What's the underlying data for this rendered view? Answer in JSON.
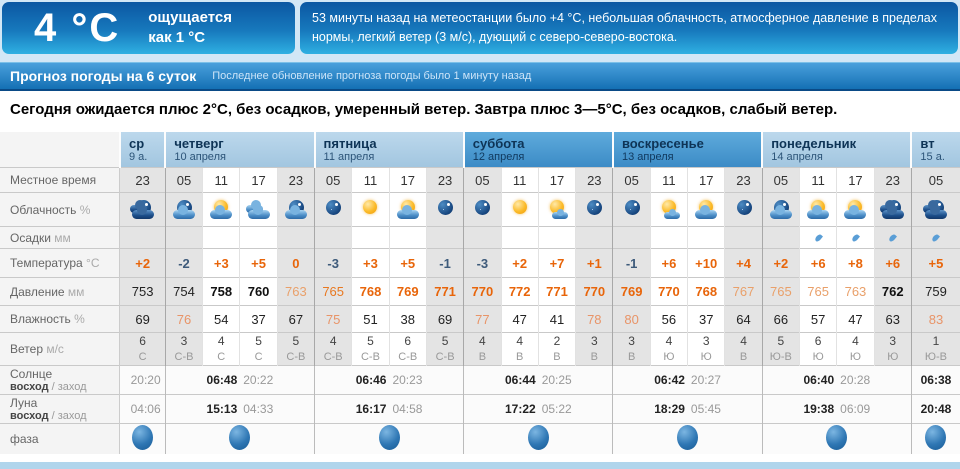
{
  "current": {
    "temp_big": "4 °C",
    "feels_line1": "ощущается",
    "feels_line2": "как 1 °С",
    "summary": "53 минуты назад на метеостанции было +4 °С, небольшая облачность, атмосферное давление в пределах нормы, легкий ветер (3 м/с), дующий с северо-северо-востока."
  },
  "forecast": {
    "title": "Прогноз погоды на 6 суток",
    "updated": "Последнее обновление прогноза погоды было 1 минуту назад"
  },
  "message": {
    "text": "Сегодня ожидается плюс 2°С, без осадков, умеренный ветер. Завтра плюс 3—5°С, без осадков, слабый ветер."
  },
  "colors": {
    "accent_blue": "#1470b4",
    "positive_temp": "#e8650a",
    "negative_temp": "#3d5a7a",
    "high_humidity": "#e89468",
    "weekend_header": "#4a9fd6"
  },
  "table": {
    "row_labels": {
      "time": {
        "label": "Местное время",
        "unit": ""
      },
      "cloud": {
        "label": "Облачность",
        "unit": "%"
      },
      "precip": {
        "label": "Осадки",
        "unit": "мм"
      },
      "temp": {
        "label": "Температура",
        "unit": "°С"
      },
      "pressure": {
        "label": "Давление",
        "unit": "мм"
      },
      "humidity": {
        "label": "Влажность",
        "unit": "%"
      },
      "wind": {
        "label": "Ветер",
        "unit": "м/с"
      },
      "sun": {
        "label": "Солнце",
        "sub_rise": "восход",
        "sub_set": "заход"
      },
      "moon": {
        "label": "Луна",
        "sub_rise": "восход",
        "sub_set": "заход"
      },
      "phase": {
        "label": "фаза"
      }
    },
    "days": [
      {
        "name": "ср",
        "date": "9 а.",
        "span": 1,
        "weekend": false,
        "sun_rise": "",
        "sun_set": "20:20",
        "moon_rise": "",
        "moon_set": "04:06"
      },
      {
        "name": "четверг",
        "date": "10 апреля",
        "span": 4,
        "weekend": false,
        "sun_rise": "06:48",
        "sun_set": "20:22",
        "moon_rise": "15:13",
        "moon_set": "04:33"
      },
      {
        "name": "пятница",
        "date": "11 апреля",
        "span": 4,
        "weekend": false,
        "sun_rise": "06:46",
        "sun_set": "20:23",
        "moon_rise": "16:17",
        "moon_set": "04:58"
      },
      {
        "name": "суббота",
        "date": "12 апреля",
        "span": 4,
        "weekend": true,
        "sun_rise": "06:44",
        "sun_set": "20:25",
        "moon_rise": "17:22",
        "moon_set": "05:22"
      },
      {
        "name": "воскресенье",
        "date": "13 апреля",
        "span": 4,
        "weekend": true,
        "sun_rise": "06:42",
        "sun_set": "20:27",
        "moon_rise": "18:29",
        "moon_set": "05:45"
      },
      {
        "name": "понедельник",
        "date": "14 апреля",
        "span": 4,
        "weekend": false,
        "sun_rise": "06:40",
        "sun_set": "20:28",
        "moon_rise": "19:38",
        "moon_set": "06:09"
      },
      {
        "name": "вт",
        "date": "15 а.",
        "span": 1,
        "weekend": false,
        "sun_rise": "06:38",
        "sun_set": "",
        "moon_rise": "20:48",
        "moon_set": ""
      }
    ],
    "columns": [
      {
        "t": "23",
        "night": true,
        "icon": "night-clouds",
        "drop": false,
        "temp": "+2",
        "tc": "pos",
        "pres": "753",
        "pc": "k",
        "hum": "69",
        "hc": "n",
        "ws": "6",
        "wd": "С"
      },
      {
        "t": "05",
        "night": true,
        "icon": "moon-cloud",
        "drop": false,
        "temp": "-2",
        "tc": "neg",
        "pres": "754",
        "pc": "k",
        "hum": "76",
        "hc": "o",
        "ws": "3",
        "wd": "С-В"
      },
      {
        "t": "11",
        "night": false,
        "icon": "sun-cloud",
        "drop": false,
        "temp": "+3",
        "tc": "pos",
        "pres": "758",
        "pc": "kb",
        "hum": "54",
        "hc": "n",
        "ws": "4",
        "wd": "С"
      },
      {
        "t": "17",
        "night": false,
        "icon": "clouds",
        "drop": false,
        "temp": "+5",
        "tc": "pos",
        "pres": "760",
        "pc": "kb",
        "hum": "37",
        "hc": "n",
        "ws": "5",
        "wd": "С"
      },
      {
        "t": "23",
        "night": true,
        "icon": "moon-cloud",
        "drop": false,
        "temp": "0",
        "tc": "pos",
        "pres": "763",
        "pc": "ol",
        "hum": "67",
        "hc": "n",
        "ws": "5",
        "wd": "С-В"
      },
      {
        "t": "05",
        "night": true,
        "icon": "moon",
        "drop": false,
        "temp": "-3",
        "tc": "neg",
        "pres": "765",
        "pc": "on",
        "hum": "75",
        "hc": "o",
        "ws": "4",
        "wd": "С-В"
      },
      {
        "t": "11",
        "night": false,
        "icon": "sun",
        "drop": false,
        "temp": "+3",
        "tc": "pos",
        "pres": "768",
        "pc": "o",
        "hum": "51",
        "hc": "n",
        "ws": "5",
        "wd": "С-В"
      },
      {
        "t": "17",
        "night": false,
        "icon": "sun-cloud",
        "drop": false,
        "temp": "+5",
        "tc": "pos",
        "pres": "769",
        "pc": "o",
        "hum": "38",
        "hc": "n",
        "ws": "6",
        "wd": "С-В"
      },
      {
        "t": "23",
        "night": true,
        "icon": "moon",
        "drop": false,
        "temp": "-1",
        "tc": "neg",
        "pres": "771",
        "pc": "o",
        "hum": "69",
        "hc": "n",
        "ws": "5",
        "wd": "С-В"
      },
      {
        "t": "05",
        "night": true,
        "icon": "moon",
        "drop": false,
        "temp": "-3",
        "tc": "neg",
        "pres": "770",
        "pc": "o",
        "hum": "77",
        "hc": "o",
        "ws": "4",
        "wd": "В"
      },
      {
        "t": "11",
        "night": false,
        "icon": "sun",
        "drop": false,
        "temp": "+2",
        "tc": "pos",
        "pres": "772",
        "pc": "o",
        "hum": "47",
        "hc": "n",
        "ws": "4",
        "wd": "В"
      },
      {
        "t": "17",
        "night": false,
        "icon": "sun-small-cloud",
        "drop": false,
        "temp": "+7",
        "tc": "pos",
        "pres": "771",
        "pc": "o",
        "hum": "41",
        "hc": "n",
        "ws": "2",
        "wd": "В"
      },
      {
        "t": "23",
        "night": true,
        "icon": "moon",
        "drop": false,
        "temp": "+1",
        "tc": "pos",
        "pres": "770",
        "pc": "o",
        "hum": "78",
        "hc": "o",
        "ws": "3",
        "wd": "В"
      },
      {
        "t": "05",
        "night": true,
        "icon": "moon",
        "drop": false,
        "temp": "-1",
        "tc": "neg",
        "pres": "769",
        "pc": "o",
        "hum": "80",
        "hc": "o",
        "ws": "3",
        "wd": "В"
      },
      {
        "t": "11",
        "night": false,
        "icon": "sun-small-cloud",
        "drop": false,
        "temp": "+6",
        "tc": "pos",
        "pres": "770",
        "pc": "o",
        "hum": "56",
        "hc": "n",
        "ws": "4",
        "wd": "Ю"
      },
      {
        "t": "17",
        "night": false,
        "icon": "sun-cloud",
        "drop": false,
        "temp": "+10",
        "tc": "pos",
        "pres": "768",
        "pc": "o",
        "hum": "37",
        "hc": "n",
        "ws": "3",
        "wd": "Ю"
      },
      {
        "t": "23",
        "night": true,
        "icon": "moon",
        "drop": false,
        "temp": "+4",
        "tc": "pos",
        "pres": "767",
        "pc": "ol",
        "hum": "64",
        "hc": "n",
        "ws": "4",
        "wd": "В"
      },
      {
        "t": "05",
        "night": true,
        "icon": "moon-cloud",
        "drop": false,
        "temp": "+2",
        "tc": "pos",
        "pres": "765",
        "pc": "ol",
        "hum": "66",
        "hc": "n",
        "ws": "5",
        "wd": "Ю-В"
      },
      {
        "t": "11",
        "night": false,
        "icon": "sun-cloud",
        "drop": true,
        "temp": "+6",
        "tc": "pos",
        "pres": "765",
        "pc": "ol",
        "hum": "57",
        "hc": "n",
        "ws": "6",
        "wd": "Ю"
      },
      {
        "t": "17",
        "night": false,
        "icon": "sun-cloud",
        "drop": true,
        "temp": "+8",
        "tc": "pos",
        "pres": "763",
        "pc": "ol",
        "hum": "47",
        "hc": "n",
        "ws": "4",
        "wd": "Ю"
      },
      {
        "t": "23",
        "night": true,
        "icon": "night-clouds",
        "drop": true,
        "temp": "+6",
        "tc": "pos",
        "pres": "762",
        "pc": "kb",
        "hum": "63",
        "hc": "n",
        "ws": "3",
        "wd": "Ю"
      },
      {
        "t": "05",
        "night": true,
        "icon": "night-clouds",
        "drop": true,
        "temp": "+5",
        "tc": "pos",
        "pres": "759",
        "pc": "k",
        "hum": "83",
        "hc": "o",
        "ws": "1",
        "wd": "Ю-В"
      }
    ]
  }
}
